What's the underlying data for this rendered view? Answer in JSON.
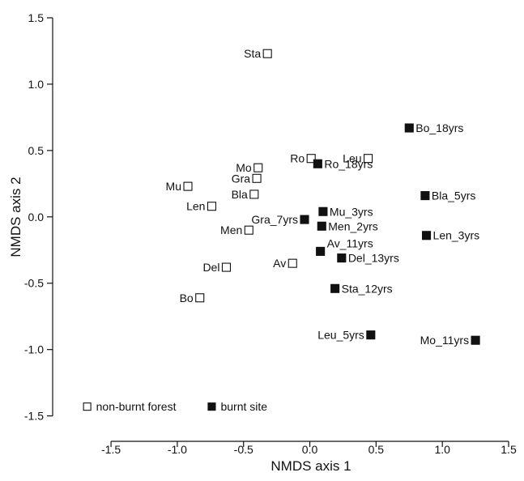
{
  "chart_data": {
    "type": "scatter",
    "xlabel": "NMDS axis 1",
    "ylabel": "NMDS axis 2",
    "xlim": [
      -1.8,
      1.5
    ],
    "ylim": [
      -1.6,
      1.5
    ],
    "xticks": [
      -1.5,
      -1.0,
      -0.5,
      0.0,
      0.5,
      1.0,
      1.5
    ],
    "yticks": [
      -1.5,
      -1.0,
      -0.5,
      0.0,
      0.5,
      1.0,
      1.5
    ],
    "xtick_labels": [
      "-1.5",
      "-1.0",
      "-0.5",
      "0.0",
      "0.5",
      "1.0",
      "1.5"
    ],
    "ytick_labels": [
      "-1.5",
      "-1.0",
      "-0.5",
      "0.0",
      "0.5",
      "1.0",
      "1.5"
    ],
    "grid": false,
    "legend_position": "bottom-left",
    "series": [
      {
        "name": "non-burnt forest",
        "marker": "open-square",
        "color": "#111111",
        "points": [
          {
            "label": "Sta",
            "x": -0.32,
            "y": 1.23,
            "label_side": "left"
          },
          {
            "label": "Mo",
            "x": -0.39,
            "y": 0.37,
            "label_side": "left"
          },
          {
            "label": "Gra",
            "x": -0.4,
            "y": 0.29,
            "label_side": "left"
          },
          {
            "label": "Bla",
            "x": -0.42,
            "y": 0.17,
            "label_side": "left"
          },
          {
            "label": "Mu",
            "x": -0.92,
            "y": 0.23,
            "label_side": "left"
          },
          {
            "label": "Len",
            "x": -0.74,
            "y": 0.08,
            "label_side": "left"
          },
          {
            "label": "Men",
            "x": -0.46,
            "y": -0.1,
            "label_side": "left"
          },
          {
            "label": "Del",
            "x": -0.63,
            "y": -0.38,
            "label_side": "left"
          },
          {
            "label": "Av",
            "x": -0.13,
            "y": -0.35,
            "label_side": "left"
          },
          {
            "label": "Bo",
            "x": -0.83,
            "y": -0.61,
            "label_side": "left"
          },
          {
            "label": "Ro",
            "x": 0.01,
            "y": 0.44,
            "label_side": "left"
          },
          {
            "label": "Leu",
            "x": 0.44,
            "y": 0.44,
            "label_side": "left"
          }
        ]
      },
      {
        "name": "burnt site",
        "marker": "filled-square",
        "color": "#111111",
        "points": [
          {
            "label": "Bo_18yrs",
            "x": 0.75,
            "y": 0.67,
            "label_side": "right"
          },
          {
            "label": "Ro_18yrs",
            "x": 0.06,
            "y": 0.4,
            "label_side": "right"
          },
          {
            "label": "Bla_5yrs",
            "x": 0.87,
            "y": 0.16,
            "label_side": "right"
          },
          {
            "label": "Gra_7yrs",
            "x": -0.04,
            "y": -0.02,
            "label_side": "left"
          },
          {
            "label": "Mu_3yrs",
            "x": 0.1,
            "y": 0.04,
            "label_side": "right"
          },
          {
            "label": "Men_2yrs",
            "x": 0.09,
            "y": -0.07,
            "label_side": "right"
          },
          {
            "label": "Len_3yrs",
            "x": 0.88,
            "y": -0.14,
            "label_side": "right"
          },
          {
            "label": "Av_11yrs",
            "x": 0.08,
            "y": -0.26,
            "label_side": "right-up"
          },
          {
            "label": "Del_13yrs",
            "x": 0.24,
            "y": -0.31,
            "label_side": "right"
          },
          {
            "label": "Sta_12yrs",
            "x": 0.19,
            "y": -0.54,
            "label_side": "right"
          },
          {
            "label": "Leu_5yrs",
            "x": 0.46,
            "y": -0.89,
            "label_side": "left"
          },
          {
            "label": "Mo_11yrs",
            "x": 1.25,
            "y": -0.93,
            "label_side": "left"
          }
        ]
      }
    ],
    "legend": [
      {
        "label": "non-burnt forest",
        "marker": "open-square"
      },
      {
        "label": "burnt site",
        "marker": "filled-square"
      }
    ]
  }
}
